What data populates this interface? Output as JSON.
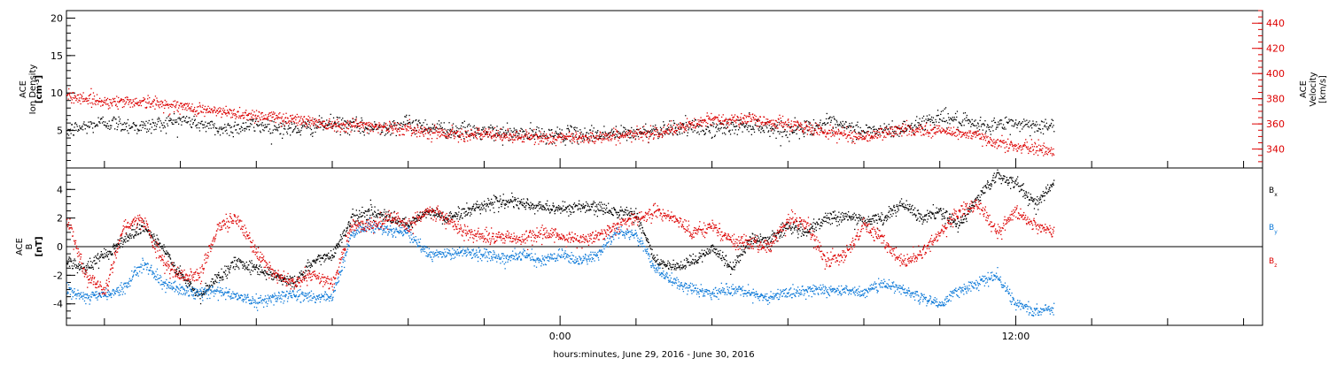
{
  "chart_data": [
    {
      "type": "scatter",
      "panel": "top",
      "ylabel_lines": [
        "ACE",
        "Ion Density"
      ],
      "yunits_html": "[cm<tspan baseline-shift='super' font-size='6'>-3</tspan>]",
      "yunits_text": "[cm-3]",
      "y2label_lines": [
        "ACE",
        "Velocity"
      ],
      "y2units_text": "[km/s]",
      "ylim": [
        0,
        21
      ],
      "y2lim": [
        325,
        450
      ],
      "yticks": [
        5,
        10,
        15,
        20
      ],
      "y2ticks": [
        340,
        360,
        380,
        400,
        420,
        440
      ],
      "series": [
        {
          "name": "Ion Density",
          "axis": "left",
          "color": "#000000",
          "x_hours": [
            -13.0,
            -12.0,
            -11.0,
            -10.0,
            -9.5,
            -9.0,
            -8.0,
            -7.0,
            -6.0,
            -5.0,
            -4.0,
            -3.0,
            -2.0,
            -1.0,
            0.0,
            1.0,
            2.0,
            3.0,
            4.0,
            5.0,
            6.0,
            7.0,
            8.0,
            9.0,
            10.0,
            11.0,
            12.0,
            13.0
          ],
          "values": [
            5.0,
            6.2,
            5.5,
            6.5,
            6.0,
            5.2,
            5.8,
            5.2,
            6.0,
            5.3,
            6.0,
            5.2,
            4.8,
            4.6,
            4.5,
            4.6,
            4.7,
            5.5,
            5.2,
            5.8,
            5.0,
            6.0,
            5.0,
            5.2,
            7.0,
            5.6,
            6.0,
            5.5
          ]
        },
        {
          "name": "Velocity",
          "axis": "right",
          "color": "#dd0000",
          "x_hours": [
            -13.0,
            -12.0,
            -11.0,
            -10.0,
            -9.0,
            -8.0,
            -7.0,
            -6.0,
            -5.0,
            -4.0,
            -3.0,
            -2.0,
            -1.0,
            0.0,
            1.0,
            2.0,
            3.0,
            4.0,
            5.0,
            6.0,
            7.0,
            8.0,
            9.0,
            10.0,
            10.8,
            11.5,
            12.0,
            12.5,
            13.0
          ],
          "values": [
            383,
            378,
            378,
            374,
            370,
            367,
            364,
            360,
            359,
            356,
            353,
            352,
            350,
            349,
            350,
            352,
            356,
            364,
            364,
            360,
            354,
            350,
            356,
            355,
            352,
            346,
            342,
            341,
            339
          ]
        }
      ]
    },
    {
      "type": "scatter",
      "panel": "bottom",
      "ylabel_lines": [
        "ACE",
        "B"
      ],
      "yunits_text": "[nT]",
      "ylim": [
        -5.5,
        5.5
      ],
      "yticks": [
        -4,
        -2,
        0,
        2,
        4
      ],
      "legend": [
        "B",
        "B",
        "B"
      ],
      "legend_subscripts": [
        "x",
        "y",
        "z"
      ],
      "series": [
        {
          "name": "Bx",
          "color": "#000000",
          "x_hours": [
            -13.0,
            -12.5,
            -12.0,
            -11.5,
            -11.0,
            -10.5,
            -10.0,
            -9.5,
            -9.0,
            -8.5,
            -8.0,
            -7.5,
            -7.0,
            -6.5,
            -6.0,
            -5.5,
            -5.0,
            -4.5,
            -4.0,
            -3.5,
            -3.0,
            -2.5,
            -2.0,
            -1.5,
            -1.0,
            -0.5,
            0.0,
            0.5,
            1.0,
            1.5,
            2.0,
            2.5,
            3.0,
            3.5,
            4.0,
            4.5,
            5.0,
            5.5,
            6.0,
            6.5,
            7.0,
            7.5,
            8.0,
            8.5,
            9.0,
            9.5,
            10.0,
            10.5,
            11.0,
            11.5,
            12.0,
            12.5,
            13.0
          ],
          "values": [
            -1.0,
            -1.5,
            -0.5,
            0.5,
            1.5,
            0.0,
            -2.0,
            -3.5,
            -2.0,
            -1.0,
            -1.5,
            -2.0,
            -2.5,
            -1.0,
            -0.5,
            2.0,
            2.5,
            2.0,
            1.5,
            2.5,
            2.0,
            2.5,
            3.0,
            3.2,
            3.0,
            2.8,
            2.7,
            2.8,
            2.7,
            2.5,
            2.3,
            -1.0,
            -1.5,
            -1.0,
            0.0,
            -1.5,
            0.5,
            0.5,
            1.5,
            1.0,
            2.0,
            2.2,
            1.8,
            2.0,
            3.0,
            2.0,
            2.5,
            1.5,
            3.5,
            5.0,
            4.5,
            3.0,
            4.5
          ]
        },
        {
          "name": "By",
          "color": "#0b78d8",
          "x_hours": [
            -13.0,
            -12.5,
            -12.0,
            -11.5,
            -11.0,
            -10.5,
            -10.0,
            -9.5,
            -9.0,
            -8.5,
            -8.0,
            -7.5,
            -7.0,
            -6.5,
            -6.0,
            -5.5,
            -5.0,
            -4.5,
            -4.0,
            -3.5,
            -3.0,
            -2.5,
            -2.0,
            -1.5,
            -1.0,
            -0.5,
            0.0,
            0.5,
            1.0,
            1.5,
            2.0,
            2.5,
            3.0,
            3.5,
            4.0,
            4.5,
            5.0,
            5.5,
            6.0,
            6.5,
            7.0,
            7.5,
            8.0,
            8.5,
            9.0,
            9.5,
            10.0,
            10.5,
            11.0,
            11.5,
            12.0,
            12.5,
            13.0
          ],
          "values": [
            -3.0,
            -3.5,
            -3.3,
            -3.0,
            -1.0,
            -2.5,
            -3.0,
            -3.2,
            -3.0,
            -3.5,
            -3.8,
            -3.5,
            -3.3,
            -3.5,
            -3.5,
            1.0,
            1.5,
            1.2,
            1.0,
            -0.5,
            -0.5,
            -0.3,
            -0.5,
            -0.8,
            -0.5,
            -1.0,
            -0.5,
            -1.0,
            -0.5,
            1.2,
            0.8,
            -1.5,
            -2.5,
            -3.0,
            -3.2,
            -3.0,
            -3.3,
            -3.5,
            -3.2,
            -3.0,
            -3.0,
            -3.0,
            -3.2,
            -2.5,
            -3.0,
            -3.5,
            -4.0,
            -3.0,
            -2.5,
            -2.0,
            -4.0,
            -4.5,
            -4.2
          ]
        },
        {
          "name": "Bz",
          "color": "#dd0000",
          "x_hours": [
            -13.0,
            -12.5,
            -12.0,
            -11.5,
            -11.0,
            -10.5,
            -10.0,
            -9.5,
            -9.0,
            -8.5,
            -8.0,
            -7.5,
            -7.0,
            -6.5,
            -6.0,
            -5.5,
            -5.0,
            -4.5,
            -4.0,
            -3.5,
            -3.0,
            -2.5,
            -2.0,
            -1.5,
            -1.0,
            -0.5,
            0.0,
            0.5,
            1.0,
            1.5,
            2.0,
            2.5,
            3.0,
            3.5,
            4.0,
            4.5,
            5.0,
            5.5,
            6.0,
            6.5,
            7.0,
            7.5,
            8.0,
            8.5,
            9.0,
            9.5,
            10.0,
            10.5,
            11.0,
            11.5,
            12.0,
            12.5,
            13.0
          ],
          "values": [
            2.0,
            -2.0,
            -3.0,
            1.5,
            2.0,
            -1.0,
            -2.0,
            -2.0,
            1.5,
            2.0,
            -0.5,
            -2.0,
            -2.5,
            -2.0,
            -2.5,
            1.5,
            1.5,
            2.0,
            1.5,
            2.5,
            2.0,
            1.0,
            0.8,
            0.8,
            0.5,
            1.0,
            0.8,
            0.5,
            0.8,
            1.5,
            2.0,
            2.5,
            2.0,
            1.0,
            1.5,
            0.5,
            0.2,
            0.0,
            2.0,
            1.5,
            -1.0,
            -0.5,
            1.5,
            0.5,
            -1.0,
            -0.5,
            1.0,
            2.5,
            3.0,
            1.0,
            2.5,
            1.5,
            1.0
          ]
        }
      ]
    }
  ],
  "x_axis": {
    "xlabel": "hours:minutes, June 29, 2016 - June 30, 2016",
    "range_hours": [
      -13.0,
      18.5
    ],
    "tick_labels": [
      {
        "hour": 0,
        "label": "0:00"
      },
      {
        "hour": 12,
        "label": "12:00"
      }
    ]
  }
}
